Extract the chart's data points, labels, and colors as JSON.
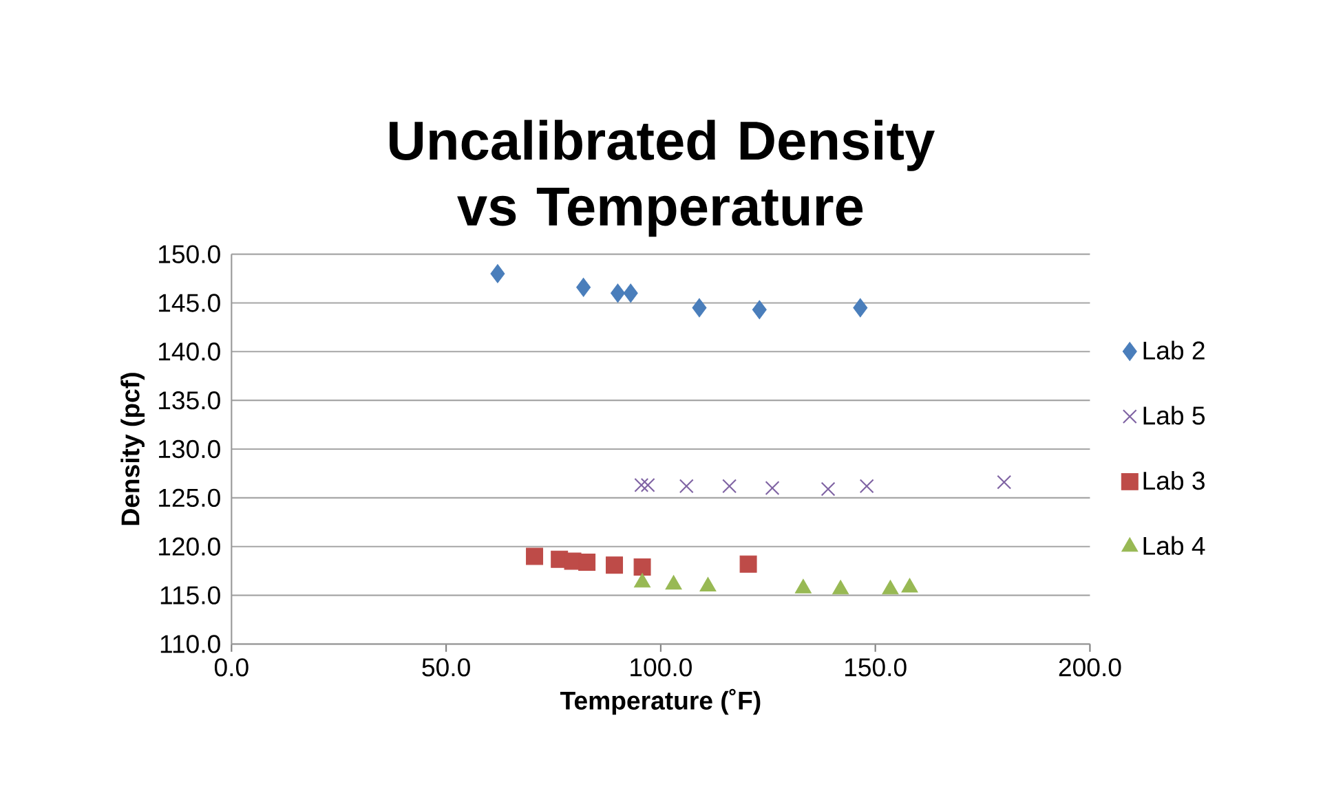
{
  "chart_data": {
    "type": "scatter",
    "title": "Uncalibrated Density vs Temperature",
    "xlabel": "Temperature (˚F)",
    "ylabel": "Density (pcf)",
    "xlim": [
      0,
      200
    ],
    "xticks": [
      {
        "value": 0,
        "label": "0.0"
      },
      {
        "value": 50,
        "label": "50.0"
      },
      {
        "value": 100,
        "label": "100.0"
      },
      {
        "value": 150,
        "label": "150.0"
      },
      {
        "value": 200,
        "label": "200.0"
      }
    ],
    "ylim": [
      110,
      150
    ],
    "yticks": [
      {
        "value": 110,
        "label": "110.0"
      },
      {
        "value": 115,
        "label": "115.0"
      },
      {
        "value": 120,
        "label": "120.0"
      },
      {
        "value": 125,
        "label": "125.0"
      },
      {
        "value": 130,
        "label": "130.0"
      },
      {
        "value": 135,
        "label": "135.0"
      },
      {
        "value": 140,
        "label": "140.0"
      },
      {
        "value": 145,
        "label": "145.0"
      },
      {
        "value": 150,
        "label": "150.0"
      }
    ],
    "grid": "y",
    "legend": "right",
    "series": [
      {
        "name": "Lab 2",
        "color": "#4a7ebb",
        "marker": "diamond",
        "x": [
          62,
          82,
          90,
          93,
          109,
          123,
          146.5
        ],
        "values": [
          148.0,
          146.6,
          146.0,
          146.0,
          144.5,
          144.3,
          144.5
        ]
      },
      {
        "name": "Lab 5",
        "color": "#7f63a3",
        "marker": "cross",
        "x": [
          95.5,
          97,
          106,
          116,
          126,
          139,
          148,
          180
        ],
        "values": [
          126.3,
          126.3,
          126.2,
          126.2,
          126.0,
          125.9,
          126.2,
          126.6
        ]
      },
      {
        "name": "Lab 3",
        "color": "#be4b48",
        "marker": "square",
        "x": [
          70.6,
          76.4,
          79.5,
          82.8,
          89.2,
          95.7,
          120.4
        ],
        "values": [
          119.0,
          118.7,
          118.5,
          118.4,
          118.1,
          117.9,
          118.2
        ]
      },
      {
        "name": "Lab 4",
        "color": "#98b954",
        "marker": "triangle",
        "x": [
          95.7,
          103,
          111,
          133.2,
          141.9,
          153.5,
          158
        ],
        "values": [
          116.3,
          116.1,
          115.9,
          115.7,
          115.6,
          115.6,
          115.8
        ]
      }
    ]
  }
}
